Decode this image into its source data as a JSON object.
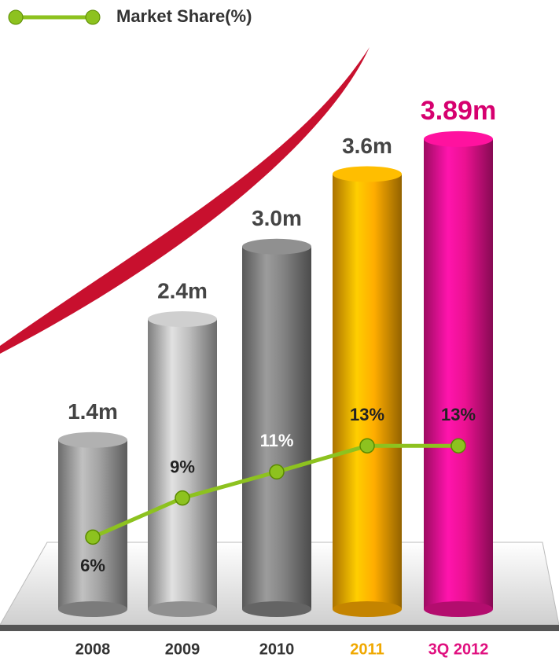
{
  "chart_data": {
    "type": "bar",
    "categories": [
      "2008",
      "2009",
      "2010",
      "2011",
      "3Q 2012"
    ],
    "category_label_colors": [
      "#333333",
      "#333333",
      "#333333",
      "#f0a800",
      "#e0107f"
    ],
    "ylim": [
      0,
      4
    ],
    "y2lim": [
      0,
      20
    ],
    "series": [
      {
        "values": [
          1.4,
          2.4,
          3.0,
          3.6,
          3.89
        ],
        "value_labels": [
          "1.4m",
          "2.4m",
          "3.0m",
          "3.6m",
          "3.89m"
        ],
        "colors": [
          "#9a9a9a",
          "#b4b4b4",
          "#7d7d7d",
          "#f5a500",
          "#e0108a"
        ],
        "label_colors": [
          "#444444",
          "#444444",
          "#444444",
          "#444444",
          "#d6006f"
        ]
      },
      {
        "name": "Market Share(%)",
        "type": "line",
        "axis": "y2",
        "color": "#8dc21f",
        "values": [
          6,
          9,
          11,
          13,
          13
        ],
        "value_labels": [
          "6%",
          "9%",
          "11%",
          "13%",
          "13%"
        ],
        "label_colors": [
          "#222222",
          "#222222",
          "#ffffff",
          "#222222",
          "#222222"
        ]
      }
    ],
    "legend": "top-left"
  }
}
